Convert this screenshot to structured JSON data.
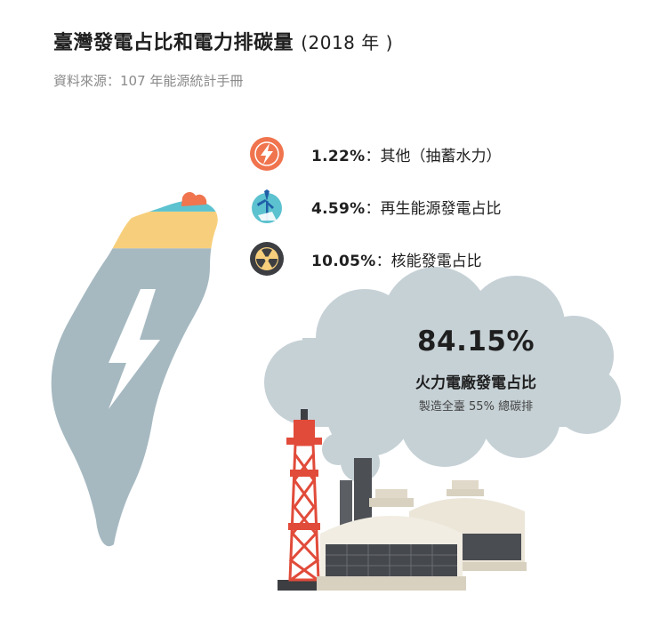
{
  "header": {
    "title": "臺灣發電占比和電力排碳量",
    "year": "(2018 年 )",
    "source": "資料來源：107 年能源統計手冊"
  },
  "chart_data": {
    "type": "pie",
    "title": "臺灣發電占比和電力排碳量 (2018 年 )",
    "slices": [
      {
        "label": "：其他（抽蓄水力）",
        "pct_text": "1.22%",
        "value": 1.22,
        "color": "#f0744e",
        "icon": "lightning-bolt-icon"
      },
      {
        "label": "：再生能源發電占比",
        "pct_text": "4.59%",
        "value": 4.59,
        "color": "#5cc2cf",
        "icon": "wind-turbine-icon"
      },
      {
        "label": "：核能發電占比",
        "pct_text": "10.05%",
        "value": 10.05,
        "color": "#f7cf7c",
        "icon": "radiation-icon"
      },
      {
        "label": "火力電廠發電占比",
        "pct_text": "84.15%",
        "value": 84.15,
        "color": "#a6b9c1",
        "note": "製造全臺 55% 總碳排",
        "icon": "power-plant-icon"
      }
    ]
  },
  "colors": {
    "other": "#f0744e",
    "renewable": "#5cc2cf",
    "nuclear": "#f7cf7c",
    "thermal": "#a6b9c1",
    "smoke": "#c6d1d6",
    "tower_red": "#e14b3a",
    "dark": "#3c3e42"
  }
}
